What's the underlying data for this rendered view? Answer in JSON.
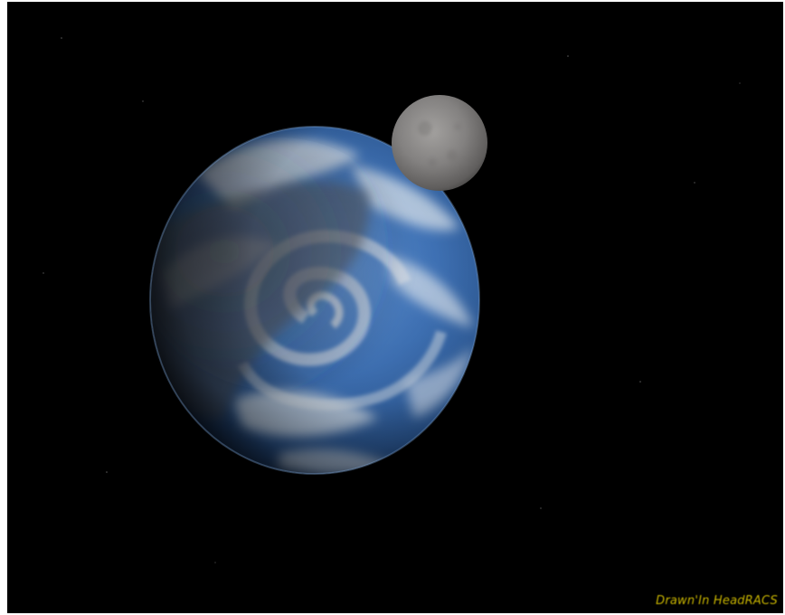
{
  "image": {
    "subject": "planet-with-moon",
    "colors": {
      "space": "#000000",
      "ocean": "#3a6fb4",
      "cloud": "#e6ecf2",
      "moon": "#8a8886",
      "signature": "#c8b400"
    }
  },
  "credit": {
    "text": "Drawn'In HeadRACS"
  }
}
